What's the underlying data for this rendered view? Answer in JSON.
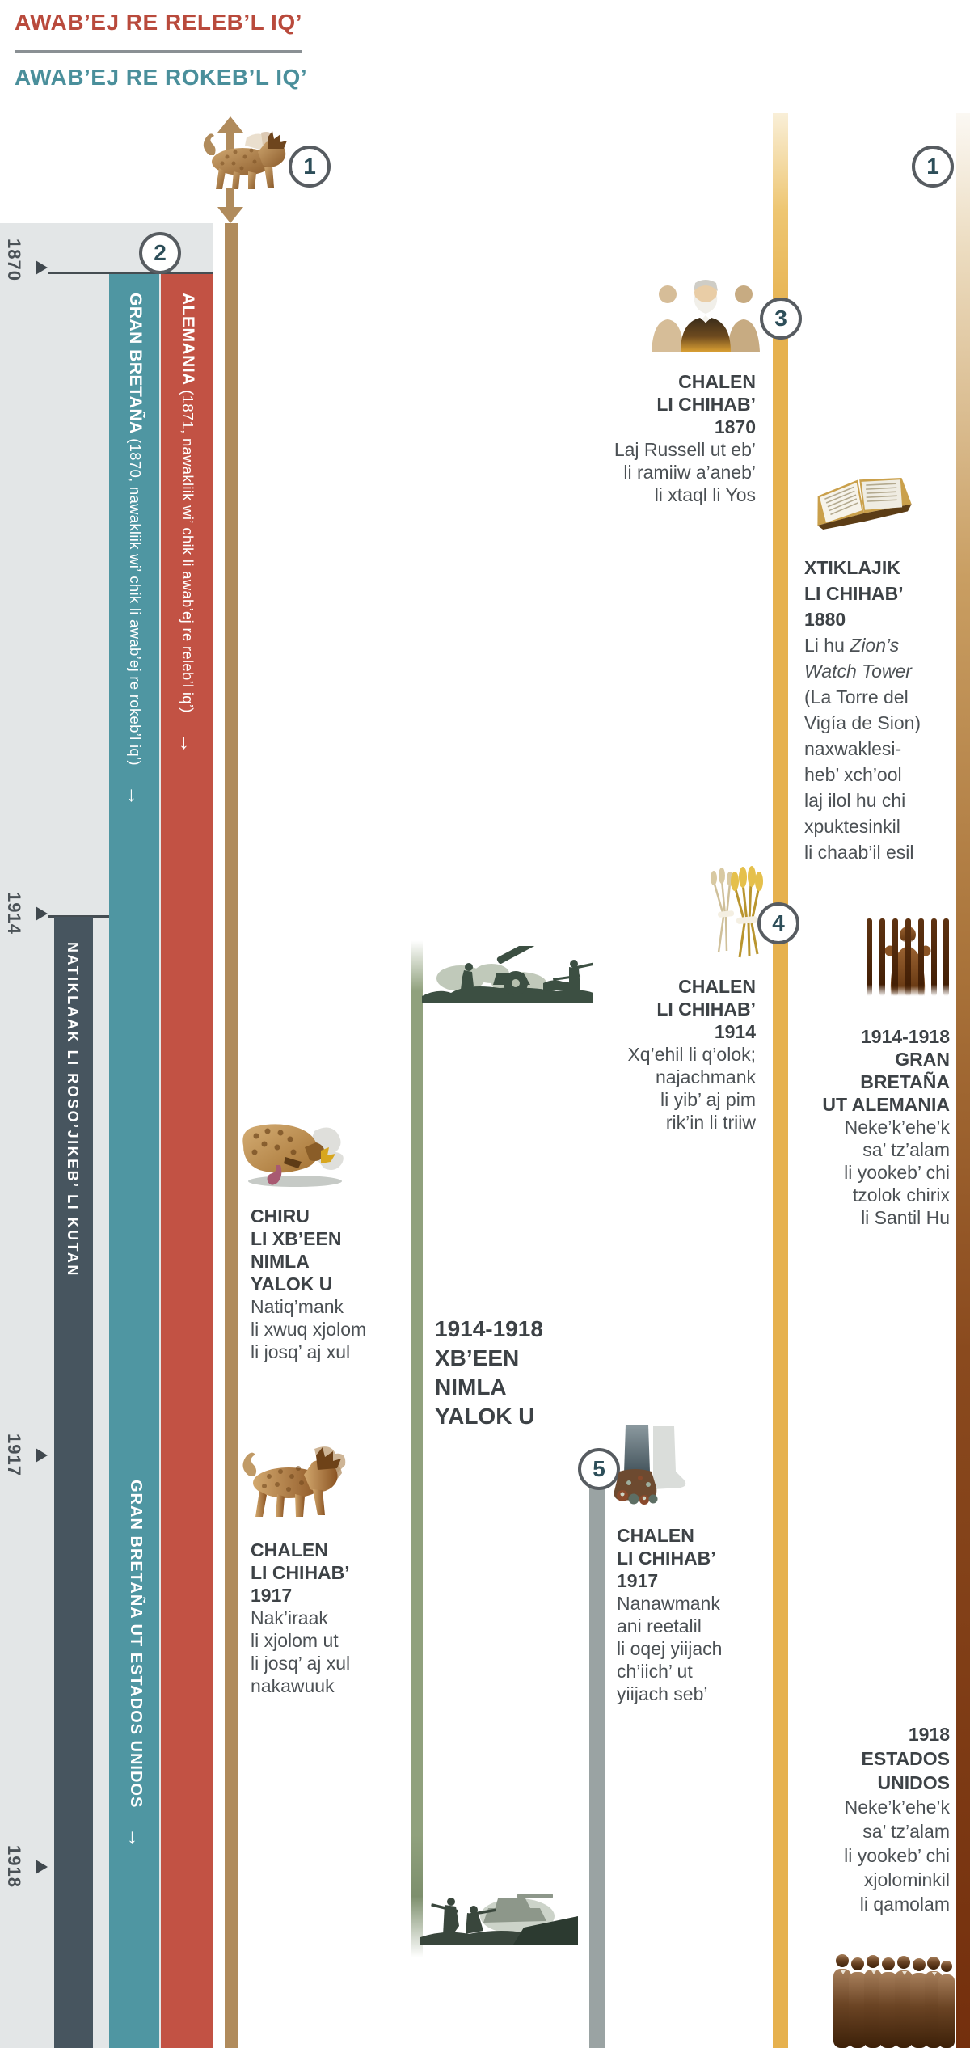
{
  "page": {
    "title_east": "AWAB’EJ RE RELEB’L IQ’",
    "title_west": "AWAB’EJ RE ROKEB’L IQ’"
  },
  "years": {
    "y1870": "1870",
    "y1914": "1914",
    "y1917": "1917",
    "y1918": "1918"
  },
  "markers": {
    "m1_left": "1",
    "m2": "2",
    "m3": "3",
    "m4": "4",
    "m5": "5",
    "m1_right": "1"
  },
  "bars": {
    "britain1": {
      "name": "GRAN BRETAÑA",
      "note": " (1870, nawakliik wi’ chik li awab’ej re rokeb’l iq’)",
      "arrow": "→"
    },
    "germany": {
      "name": "ALEMANIA",
      "note": " (1871, nawakliik wi’ chik li awab’ej re releb’l iq’)",
      "arrow": "→"
    },
    "last_days": {
      "label": "NATIKLAAK LI ROSO’JIKEB’ LI KUTAN"
    },
    "britain_us": {
      "label": "GRAN BRETAÑA UT ESTADOS UNIDOS",
      "arrow": "→"
    }
  },
  "events": {
    "e1870": {
      "heading": [
        "CHALEN",
        "LI CHIHAB’",
        "1870"
      ],
      "body": [
        "Laj Russell ut eb’",
        "li ramiiw a’aneb’",
        "li xtaql li Yos"
      ]
    },
    "e1880": {
      "heading": [
        "XTIKLAJIK",
        "LI CHIHAB’",
        "1880"
      ],
      "lead_normal": "Li hu ",
      "lead_italic": "Zion’s",
      "line2_italic": "Watch Tower",
      "body": [
        "(La Torre del",
        "Vigía de Sion)",
        "naxwaklesi-",
        "heb’ xch’ool",
        "laj ilol hu chi",
        "xpuktesinkil",
        "li chaab’il esil"
      ]
    },
    "e1914": {
      "heading": [
        "CHALEN",
        "LI CHIHAB’",
        "1914"
      ],
      "body": [
        "Xq’ehil li q’olok;",
        "najachmank",
        "li yib’ aj pim",
        "rik’in li triiw"
      ]
    },
    "ww_prison": {
      "heading": [
        "1914-1918",
        "GRAN",
        "BRETAÑA",
        "UT ALEMANIA"
      ],
      "body": [
        "Neke’k’ehe’k",
        "sa’ tz’alam",
        "li yookeb’ chi",
        "tzolok chirix",
        "li Santil Hu"
      ]
    },
    "beast_wounded": {
      "heading": [
        "CHIRU",
        "LI XB’EEN",
        "NIMLA",
        "YALOK U"
      ],
      "body": [
        "Natiq’mank",
        "li xwuq xjolom",
        "li josq’ aj xul"
      ]
    },
    "ww1": {
      "heading": [
        "1914-1918",
        "XB’EEN",
        "NIMLA",
        "YALOK U"
      ]
    },
    "e1917_beast": {
      "heading": [
        "CHALEN",
        "LI CHIHAB’",
        "1917"
      ],
      "body": [
        "Nak’iraak",
        "li xjolom ut",
        "li josq’ aj xul",
        "nakawuuk"
      ]
    },
    "e1917_feet": {
      "heading": [
        "CHALEN",
        "LI CHIHAB’",
        "1917"
      ],
      "body": [
        "Nanawmank",
        "ani reetalil",
        "li oqej yiijach",
        "ch’iich’ ut",
        "yiijach seb’"
      ]
    },
    "e1918": {
      "heading": [
        "1918",
        "ESTADOS",
        "UNIDOS"
      ],
      "body": [
        "Neke’k’ehe’k",
        "sa’ tz’alam",
        "li yookeb’ chi",
        "xjolominkil",
        "li qamolam"
      ]
    }
  },
  "colors": {
    "east_red": "#b94a3c",
    "west_teal": "#4a8f9b",
    "bar_teal": "#4f96a2",
    "bar_red": "#c25244",
    "bar_slate": "#47555f",
    "bar_tan": "#b08b5c",
    "bar_gold": "#e6b14e",
    "bar_green": "#90a17d",
    "bar_gray": "#9aa3a3",
    "right_bar_bottom": "#742f0d",
    "panel_gray": "#e3e6e7",
    "circle_border": "#575c61",
    "circle_number": "#2d4e59",
    "text_dark": "#3d4246"
  }
}
